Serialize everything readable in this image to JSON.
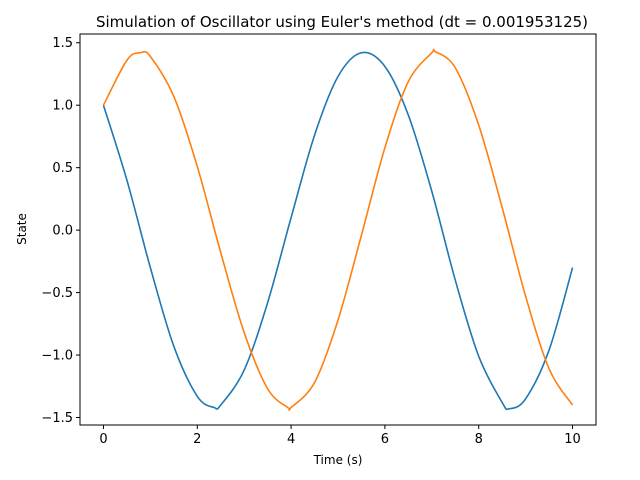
{
  "chart_data": {
    "type": "line",
    "title": "Simulation of Oscillator using Euler's method (dt = 0.001953125)",
    "xlabel": "Time (s)",
    "ylabel": "State",
    "xlim": [
      -0.5,
      10.5
    ],
    "ylim": [
      -1.56,
      1.57
    ],
    "xticks": [
      0,
      2,
      4,
      6,
      8,
      10
    ],
    "xtick_labels": [
      "0",
      "2",
      "4",
      "6",
      "8",
      "10"
    ],
    "yticks": [
      -1.5,
      -1.0,
      -0.5,
      0.0,
      0.5,
      1.0,
      1.5
    ],
    "ytick_labels": [
      "−1.5",
      "−1.0",
      "−0.5",
      "0.0",
      "0.5",
      "1.0",
      "1.5"
    ],
    "grid": false,
    "legend": "none",
    "series": [
      {
        "color": "#1f77b4",
        "x": [
          0,
          0.5,
          1,
          1.5,
          2,
          2.36,
          2.5,
          3,
          3.5,
          4,
          4.5,
          5,
          5.5,
          6,
          6.5,
          7,
          7.5,
          8,
          8.5,
          8.65,
          9,
          9.5,
          10
        ],
        "y": [
          1.0,
          0.4,
          -0.3,
          -0.93,
          -1.33,
          -1.42,
          -1.4,
          -1.12,
          -0.58,
          0.1,
          0.76,
          1.23,
          1.42,
          1.31,
          0.92,
          0.31,
          -0.4,
          -1.01,
          -1.38,
          -1.43,
          -1.35,
          -0.96,
          -0.3
        ]
      },
      {
        "color": "#ff7f0e",
        "x": [
          0,
          0.5,
          0.79,
          1,
          1.5,
          2,
          2.5,
          3,
          3.5,
          3.93,
          4,
          4.5,
          5,
          5.5,
          6,
          6.5,
          7,
          7.07,
          7.5,
          8,
          8.5,
          9,
          9.5,
          10
        ],
        "y": [
          1.0,
          1.36,
          1.42,
          1.39,
          1.07,
          0.51,
          -0.18,
          -0.82,
          -1.27,
          -1.42,
          -1.42,
          -1.22,
          -0.72,
          -0.04,
          0.66,
          1.19,
          1.42,
          1.43,
          1.3,
          0.84,
          0.18,
          -0.53,
          -1.11,
          -1.4
        ]
      }
    ]
  }
}
